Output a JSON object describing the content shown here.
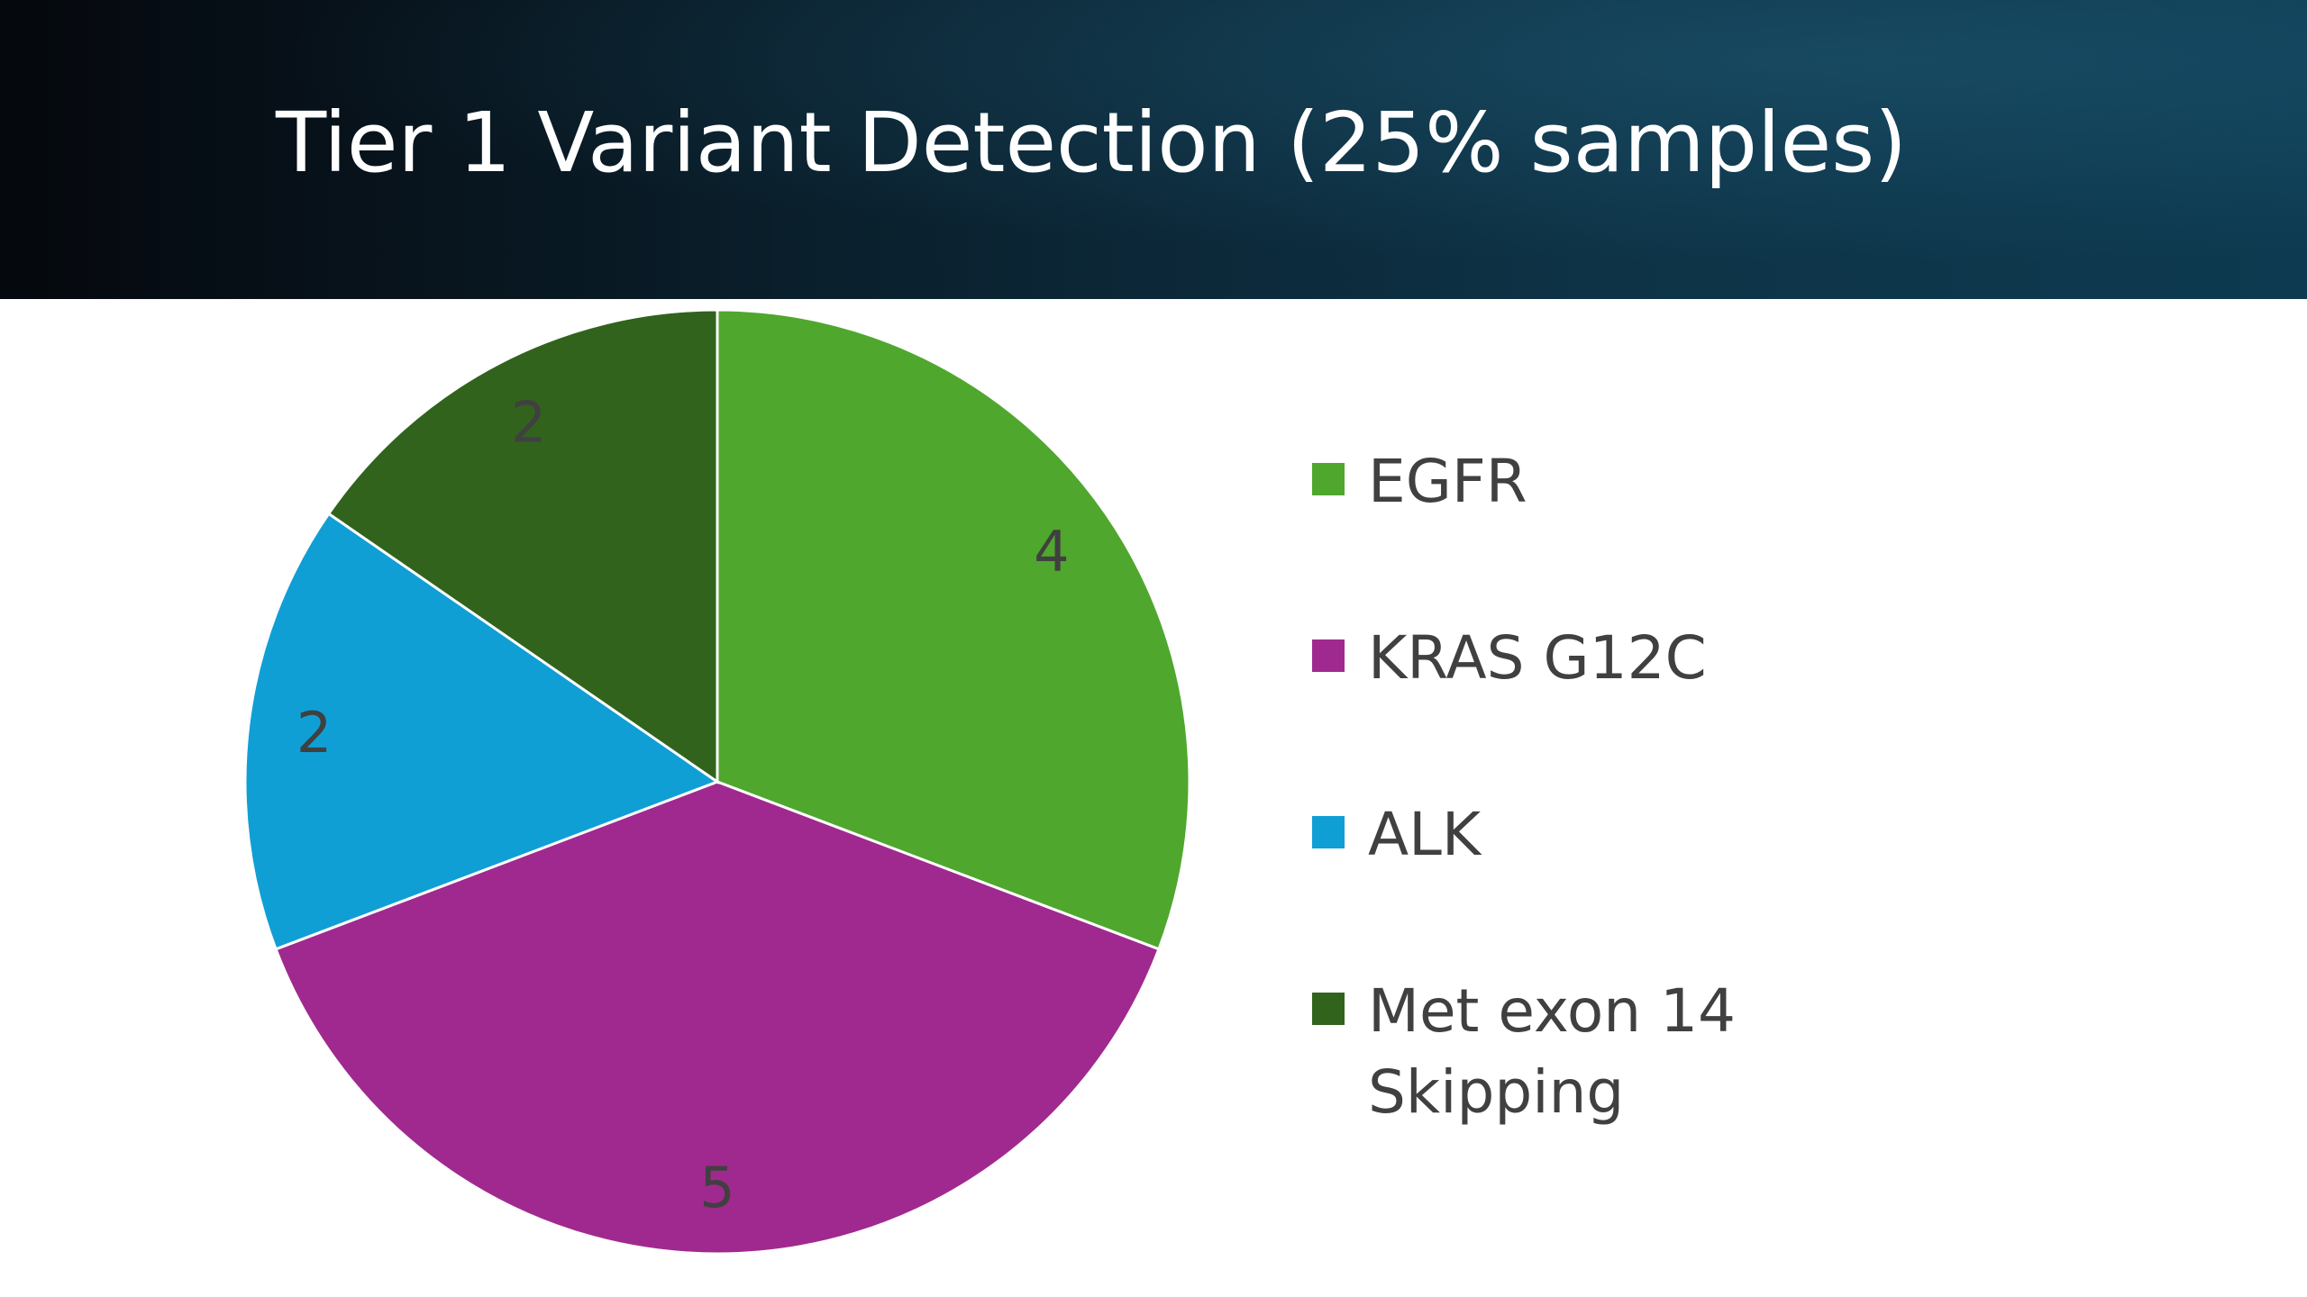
{
  "slide": {
    "title": "Tier 1 Variant Detection (25% samples)"
  },
  "chart_data": {
    "type": "pie",
    "title": "Tier 1 Variant Detection (25% samples)",
    "categories": [
      "EGFR",
      "KRAS G12C",
      "ALK",
      "Met exon 14 Skipping"
    ],
    "values": [
      4,
      5,
      2,
      2
    ],
    "data_labels": [
      "4",
      "5",
      "2",
      "2"
    ],
    "colors": [
      "#4fa72e",
      "#a0298f",
      "#109fd5",
      "#31631d"
    ],
    "legend_placement": "right",
    "start_angle_degrees": 0,
    "direction": "clockwise"
  }
}
